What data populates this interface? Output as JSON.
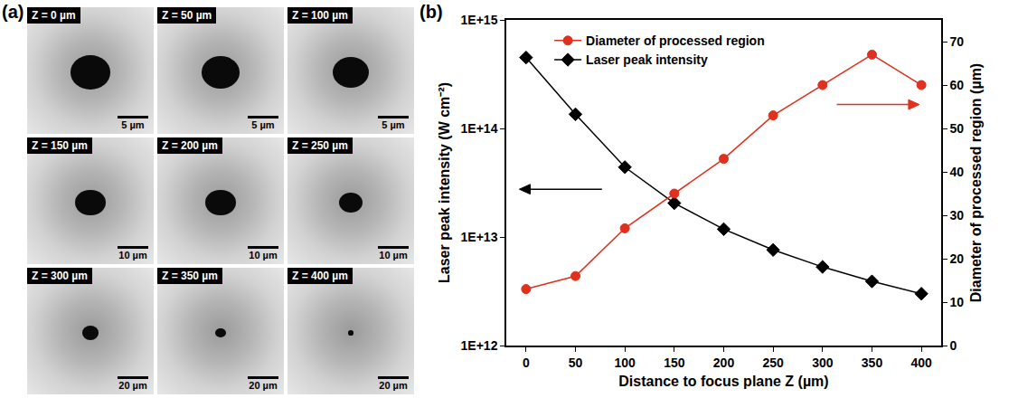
{
  "panel_a": {
    "label": "(a)",
    "images": [
      {
        "caption": "Z = 0 µm",
        "scale_bar": "5 µm"
      },
      {
        "caption": "Z = 50 µm",
        "scale_bar": "5 µm"
      },
      {
        "caption": "Z = 100 µm",
        "scale_bar": "5 µm"
      },
      {
        "caption": "Z = 150 µm",
        "scale_bar": "10 µm"
      },
      {
        "caption": "Z = 200 µm",
        "scale_bar": "10 µm"
      },
      {
        "caption": "Z = 250 µm",
        "scale_bar": "10 µm"
      },
      {
        "caption": "Z = 300 µm",
        "scale_bar": "20 µm"
      },
      {
        "caption": "Z = 350 µm",
        "scale_bar": "20 µm"
      },
      {
        "caption": "Z = 400 µm",
        "scale_bar": "20 µm"
      }
    ]
  },
  "chart_data": {
    "type": "line",
    "panel_label": "(b)",
    "x_label": "Distance to focus plane Z (µm)",
    "y_label": "Laser peak intensity (W cm⁻²)",
    "y2_label": "Diameter of processed region (µm)",
    "x": [
      0,
      50,
      100,
      150,
      200,
      250,
      300,
      350,
      400
    ],
    "series": [
      {
        "name": "Diameter of processed region",
        "color": "#e0301e",
        "marker": "circle",
        "axis": "y2",
        "values": [
          13,
          16,
          27,
          35,
          43,
          53,
          60,
          67,
          60
        ]
      },
      {
        "name": "Laser peak intensity",
        "color": "#000000",
        "marker": "diamond",
        "axis": "y",
        "values": [
          450000000000000.0,
          135000000000000.0,
          44000000000000.0,
          20500000000000.0,
          11800000000000.0,
          7600000000000.0,
          5300000000000.0,
          3900000000000.0,
          3000000000000.0
        ]
      }
    ],
    "xlim": [
      -20,
      420
    ],
    "xticks": [
      0,
      50,
      100,
      150,
      200,
      250,
      300,
      350,
      400
    ],
    "ylim": [
      1000000000000.0,
      1000000000000000.0
    ],
    "yticks": [
      {
        "value": 1000000000000.0,
        "label": "1E+12"
      },
      {
        "value": 10000000000000.0,
        "label": "1E+13"
      },
      {
        "value": 100000000000000.0,
        "label": "1E+14"
      },
      {
        "value": 1000000000000000.0,
        "label": "1E+15"
      }
    ],
    "y2lim": [
      0,
      75
    ],
    "y2ticks": [
      0,
      10,
      20,
      30,
      40,
      50,
      60,
      70
    ],
    "log": "y",
    "grid": false,
    "legend": "top left"
  }
}
